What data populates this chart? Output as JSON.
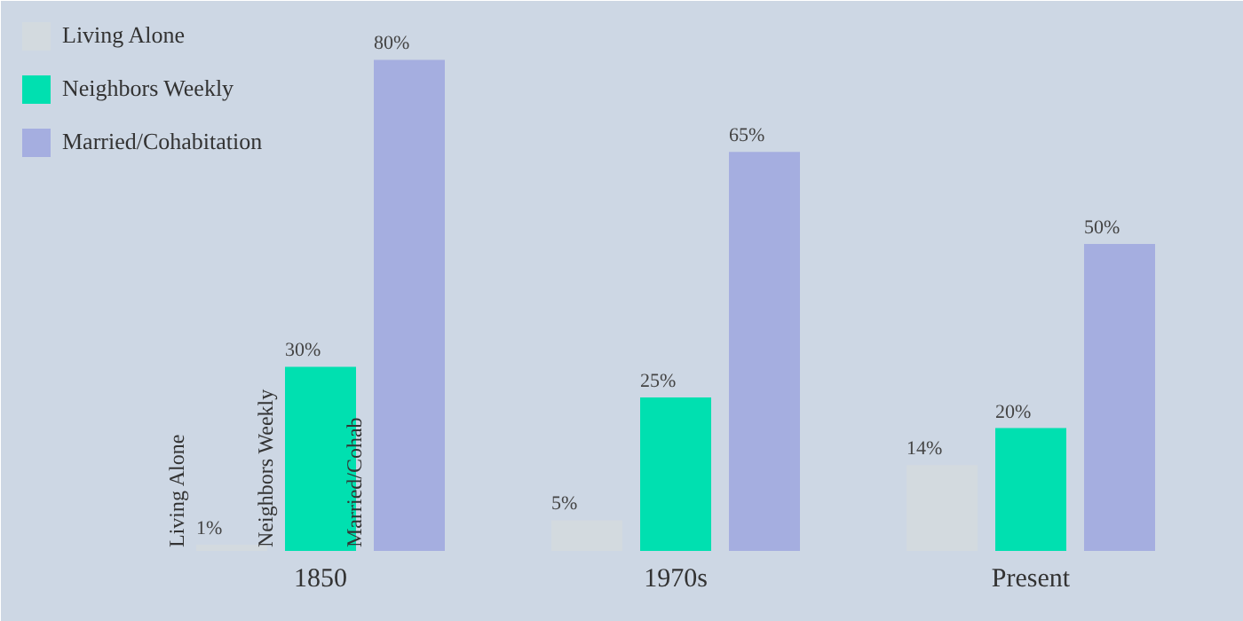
{
  "chart_data": {
    "type": "bar",
    "categories": [
      "1850",
      "1970s",
      "Present"
    ],
    "series": [
      {
        "name": "Living Alone",
        "color": "#d3dadf",
        "values": [
          1,
          5,
          14
        ],
        "value_labels": [
          "1%",
          "5%",
          "14%"
        ]
      },
      {
        "name": "Neighbors Weekly",
        "color": "#00e0b0",
        "values": [
          30,
          25,
          20
        ],
        "value_labels": [
          "30%",
          "25%",
          "20%"
        ]
      },
      {
        "name": "Married/Cohabitation",
        "color": "#a5aee0",
        "values": [
          80,
          65,
          50
        ],
        "value_labels": [
          "80%",
          "65%",
          "50%"
        ]
      }
    ],
    "legend": "top left",
    "grid": false,
    "annotations": [
      "Living Alone",
      "Neighbors Weekly",
      "Married/Cohab"
    ]
  }
}
